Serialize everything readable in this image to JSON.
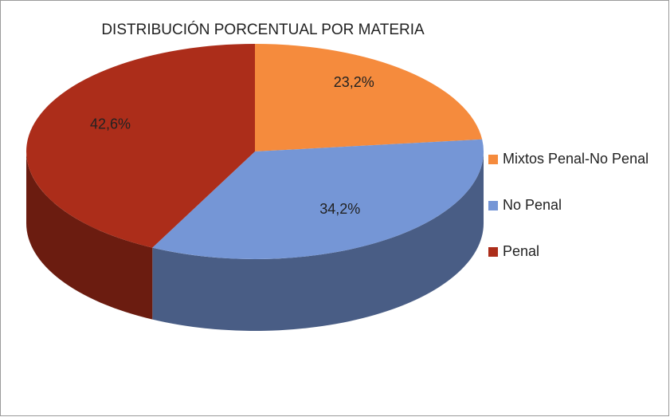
{
  "chart_data": {
    "type": "pie",
    "title": "DISTRIBUCIÓN PORCENTUAL POR MATERIA",
    "categories": [
      "Mixtos Penal-No Penal",
      "No Penal",
      "Penal"
    ],
    "values": [
      23.2,
      34.2,
      42.6
    ],
    "value_labels": [
      "23,2%",
      "34,2%",
      "42,6%"
    ],
    "colors": [
      "#f58b3d",
      "#7596d6",
      "#ac2d1a"
    ],
    "legend": "right"
  }
}
